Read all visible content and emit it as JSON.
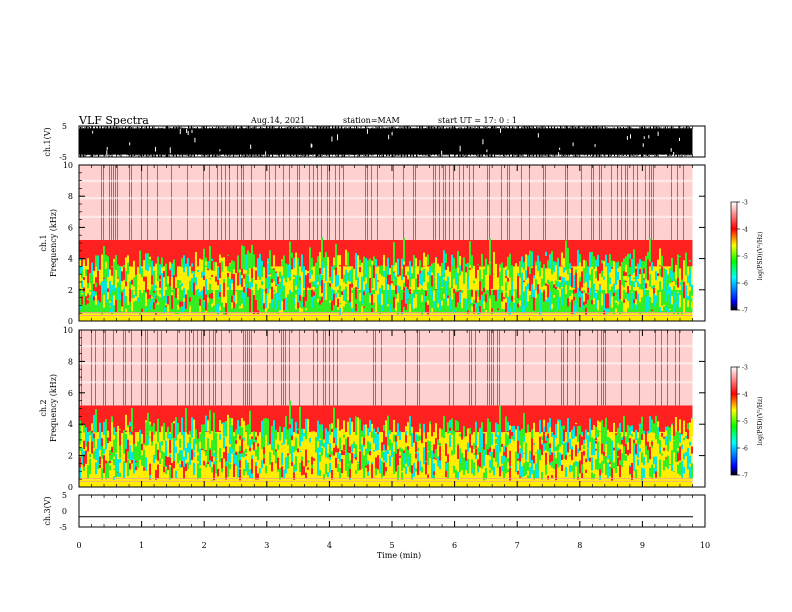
{
  "header": {
    "title": "VLF Spectra",
    "date": "Aug.14, 2021",
    "station": "station=MAM",
    "start": "start  UT =   17: 0  : 1"
  },
  "colors": {
    "background": "#ffffff",
    "waveform": "#000000",
    "colormap": [
      "#000000",
      "#0000ff",
      "#00ffff",
      "#00ff00",
      "#ffff00",
      "#ff0000",
      "#ff9a9a",
      "#ffffff"
    ]
  },
  "chart_data": [
    {
      "type": "line",
      "name": "ch1-waveform",
      "ylabel": "ch.1(V)",
      "ylim": [
        -5,
        5
      ],
      "yticks": [
        "5",
        "-5"
      ],
      "xlim": [
        0,
        10
      ],
      "description_values": {
        "fill": "dense waveform spanning approx -5 to 5 V until 9.8 min"
      },
      "data_end_min": 9.8
    },
    {
      "type": "heatmap",
      "name": "ch1-spectrogram",
      "ylabel": "ch.1\nFrequency (kHz)",
      "ylabel_line1": "ch.1",
      "ylabel_line2": "Frequency (kHz)",
      "ylim": [
        0,
        10
      ],
      "yticks": [
        "0",
        "2",
        "4",
        "6",
        "8",
        "10"
      ],
      "xlim": [
        0,
        10
      ],
      "data_end_min": 9.8,
      "colorbar": {
        "label": "log(PSD)(V²/Hz)",
        "range": [
          -7,
          -3
        ],
        "ticks": [
          "-3",
          "-4",
          "-5",
          "-6",
          "-7"
        ]
      },
      "bands_khz": [
        {
          "from": 0,
          "to": 0.5,
          "level": -4.3
        },
        {
          "from": 0.5,
          "to": 2.0,
          "level": -4.9
        },
        {
          "from": 2.0,
          "to": 3.5,
          "level": -4.2
        },
        {
          "from": 3.5,
          "to": 5.2,
          "level": -3.8
        },
        {
          "from": 5.2,
          "to": 10,
          "level": -3.3
        }
      ]
    },
    {
      "type": "heatmap",
      "name": "ch2-spectrogram",
      "ylabel_line1": "ch.2",
      "ylabel_line2": "Frequency (kHz)",
      "ylim": [
        0,
        10
      ],
      "yticks": [
        "0",
        "2",
        "4",
        "6",
        "8",
        "10"
      ],
      "xlim": [
        0,
        10
      ],
      "data_end_min": 9.8,
      "colorbar": {
        "label": "log(PSD)(V²/Hz)",
        "range": [
          -7,
          -3
        ],
        "ticks": [
          "-3",
          "-4",
          "-5",
          "-6",
          "-7"
        ]
      },
      "bands_khz": [
        {
          "from": 0,
          "to": 0.5,
          "level": -4.2
        },
        {
          "from": 0.5,
          "to": 2.0,
          "level": -4.6
        },
        {
          "from": 2.0,
          "to": 3.5,
          "level": -4.2
        },
        {
          "from": 3.5,
          "to": 5.2,
          "level": -3.8
        },
        {
          "from": 5.2,
          "to": 10,
          "level": -3.3
        }
      ]
    },
    {
      "type": "line",
      "name": "ch3-waveform",
      "ylabel": "ch.3(V)",
      "ylim": [
        -5,
        5
      ],
      "yticks": [
        "5",
        "0",
        "-5"
      ],
      "xlim": [
        0,
        10
      ],
      "constant_value": -1.8,
      "xlabel": "Time (min)",
      "xticks": [
        "0",
        "1",
        "2",
        "3",
        "4",
        "5",
        "6",
        "7",
        "8",
        "9",
        "10"
      ]
    }
  ]
}
